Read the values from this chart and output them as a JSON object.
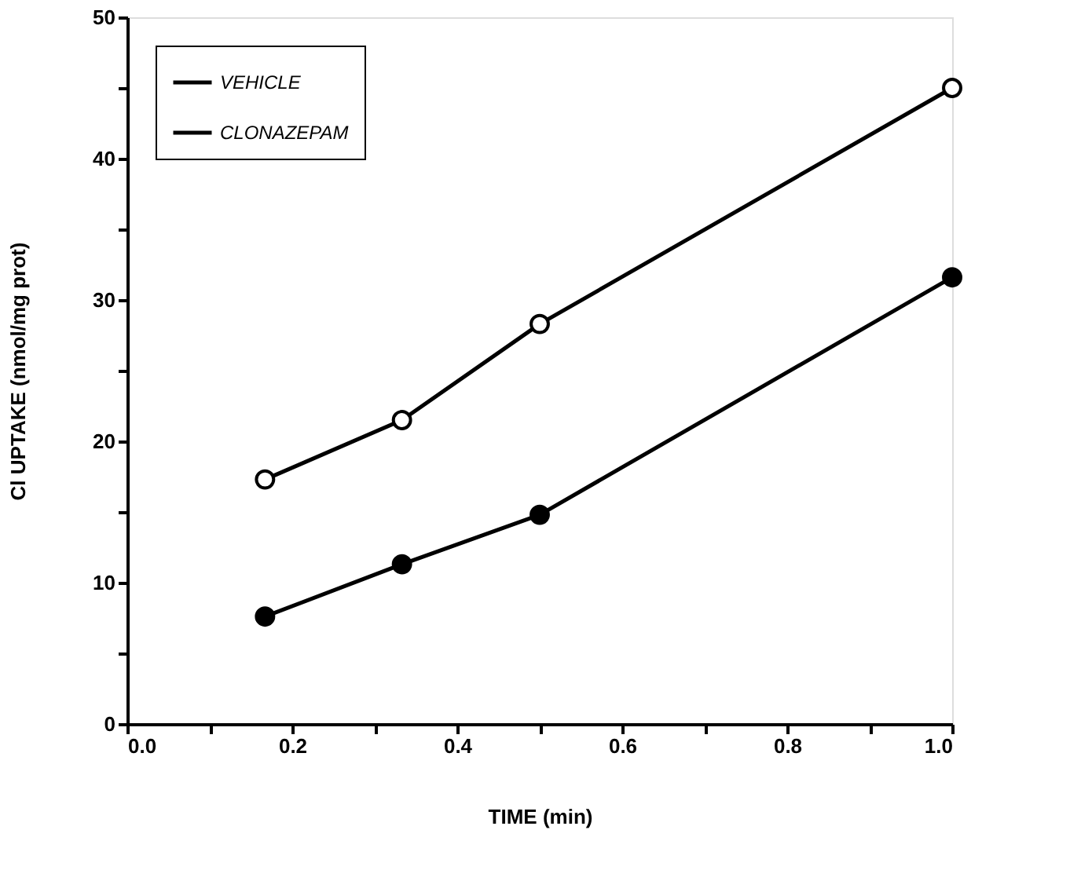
{
  "chart_data": {
    "type": "line",
    "xlabel": "TIME   (min)",
    "ylabel": "Cl UPTAKE  (nmol/mg  prot)",
    "x": [
      0.167,
      0.333,
      0.5,
      1.0
    ],
    "series": [
      {
        "name": "VEHICLE",
        "color": "#000000",
        "values": [
          17.3,
          21.5,
          28.3,
          45.0
        ]
      },
      {
        "name": "CLONAZEPAM",
        "color": "#000000",
        "values": [
          7.6,
          11.3,
          14.8,
          31.6
        ]
      }
    ],
    "xlim": [
      0,
      1.0
    ],
    "xticks": [
      {
        "value": 0,
        "label": "0.0"
      },
      {
        "value": 0.1,
        "label": null
      },
      {
        "value": 0.2,
        "label": "0.2"
      },
      {
        "value": 0.3,
        "label": null
      },
      {
        "value": 0.4,
        "label": "0.4"
      },
      {
        "value": 0.5,
        "label": null
      },
      {
        "value": 0.6,
        "label": "0.6"
      },
      {
        "value": 0.7,
        "label": null
      },
      {
        "value": 0.8,
        "label": "0.8"
      },
      {
        "value": 0.9,
        "label": null
      },
      {
        "value": 1.0,
        "label": "1.0"
      }
    ],
    "ylim": [
      0,
      50
    ],
    "yticks": [
      0,
      {
        "value": 5,
        "label": null
      },
      10,
      {
        "value": 15,
        "label": null
      },
      20,
      {
        "value": 25,
        "label": null
      },
      30,
      {
        "value": 35,
        "label": null
      },
      40,
      {
        "value": 45,
        "label": null
      },
      50
    ],
    "grid": false,
    "legend": "top left",
    "marker": "circle",
    "line_style": "solid"
  }
}
